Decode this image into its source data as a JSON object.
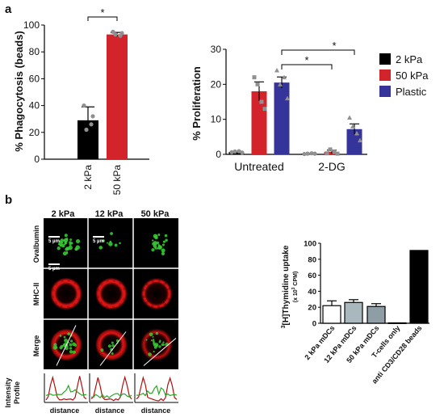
{
  "panels": {
    "a": {
      "label": "a"
    },
    "b": {
      "label": "b"
    }
  },
  "colors": {
    "kpa2": "#000000",
    "kpa50": "#d3232b",
    "plastic": "#34349a",
    "point": "#909090",
    "bar_light": "#a9b8bd",
    "bar_mid": "#8e9ea4",
    "cell_green": "#36c832",
    "cell_red": "#e01515"
  },
  "chart_data": [
    {
      "id": "phagocytosis",
      "type": "bar",
      "ylabel": "% Phagocytosis (beads)",
      "categories": [
        "2 kPa",
        "50 kPa"
      ],
      "values": [
        29,
        93
      ],
      "errors": [
        10,
        1.5
      ],
      "points": [
        [
          40,
          32,
          22,
          26
        ],
        [
          95,
          94,
          93,
          92
        ]
      ],
      "ylim": [
        0,
        100
      ],
      "yticks": [
        0,
        20,
        40,
        60,
        80,
        100
      ],
      "significance": [
        {
          "from": 0,
          "to": 1,
          "label": "*"
        }
      ],
      "colors": [
        "#000000",
        "#d3232b"
      ]
    },
    {
      "id": "proliferation",
      "type": "bar",
      "ylabel": "% Proliferation",
      "groups": [
        "Untreated",
        "2-DG"
      ],
      "series": [
        {
          "name": "2 kPa",
          "values": [
            0.7,
            0.2
          ],
          "errors": [
            0.2,
            0.1
          ],
          "points": [
            [
              0.6,
              0.8,
              0.9,
              0.5
            ],
            [
              0.1,
              0.2,
              0.3,
              0.2
            ]
          ],
          "marker": "circle"
        },
        {
          "name": "50 kPa",
          "values": [
            18,
            0.7
          ],
          "errors": [
            2.7,
            0.5
          ],
          "points": [
            [
              22,
              20,
              15,
              13
            ],
            [
              0.3,
              1.4,
              0.7,
              0.2
            ]
          ],
          "marker": "square"
        },
        {
          "name": "Plastic",
          "values": [
            20.5,
            7.2
          ],
          "errors": [
            1.6,
            1.5
          ],
          "points": [
            [
              24,
              20,
              22,
              16
            ],
            [
              10.5,
              8,
              6,
              4
            ]
          ],
          "marker": "triangle"
        }
      ],
      "ylim": [
        0,
        30
      ],
      "yticks": [
        0,
        10,
        20,
        30
      ],
      "significance": [
        {
          "from": "Untreated/Plastic",
          "to": "2-DG/Plastic",
          "label": "*"
        },
        {
          "from": "Untreated/Plastic",
          "to": "2-DG/50 kPa",
          "label": "*"
        }
      ],
      "legend": "right"
    },
    {
      "id": "thymidine",
      "type": "bar",
      "ylabel": "3[H]Thymidine uptake",
      "ylabel_sup": "3",
      "ylabel_main": "[H]Thymidine uptake",
      "ylabel_unit_pre": "(x 10",
      "ylabel_unit_sup": "3",
      "ylabel_unit_post": " CPM)",
      "categories": [
        "2 kPa mDCs",
        "12 kPa mDCs",
        "50 kPa mDCs",
        "T-cells only",
        "anti CD3/CD28 beads"
      ],
      "values": [
        22,
        26,
        21,
        0.5,
        91
      ],
      "errors": [
        6,
        3.5,
        3.5,
        0.2,
        0
      ],
      "ylim": [
        0,
        100
      ],
      "yticks": [
        0,
        20,
        40,
        60,
        80,
        100
      ],
      "colors": [
        "#ffffff",
        "#a9b8bd",
        "#8e9ea4",
        "#ffffff",
        "#000000"
      ]
    }
  ],
  "microscopy": {
    "columns": [
      "2 kPa",
      "12 kPa",
      "50 kPa"
    ],
    "rows": [
      "Ovalbumin",
      "MHC-II",
      "Merge"
    ],
    "scale_bar": "5 µm",
    "profile_label": "Intensity Profile",
    "profile_label_line1": "Intensity",
    "profile_label_line2": "Profile",
    "profile_xlabel": "distance"
  }
}
